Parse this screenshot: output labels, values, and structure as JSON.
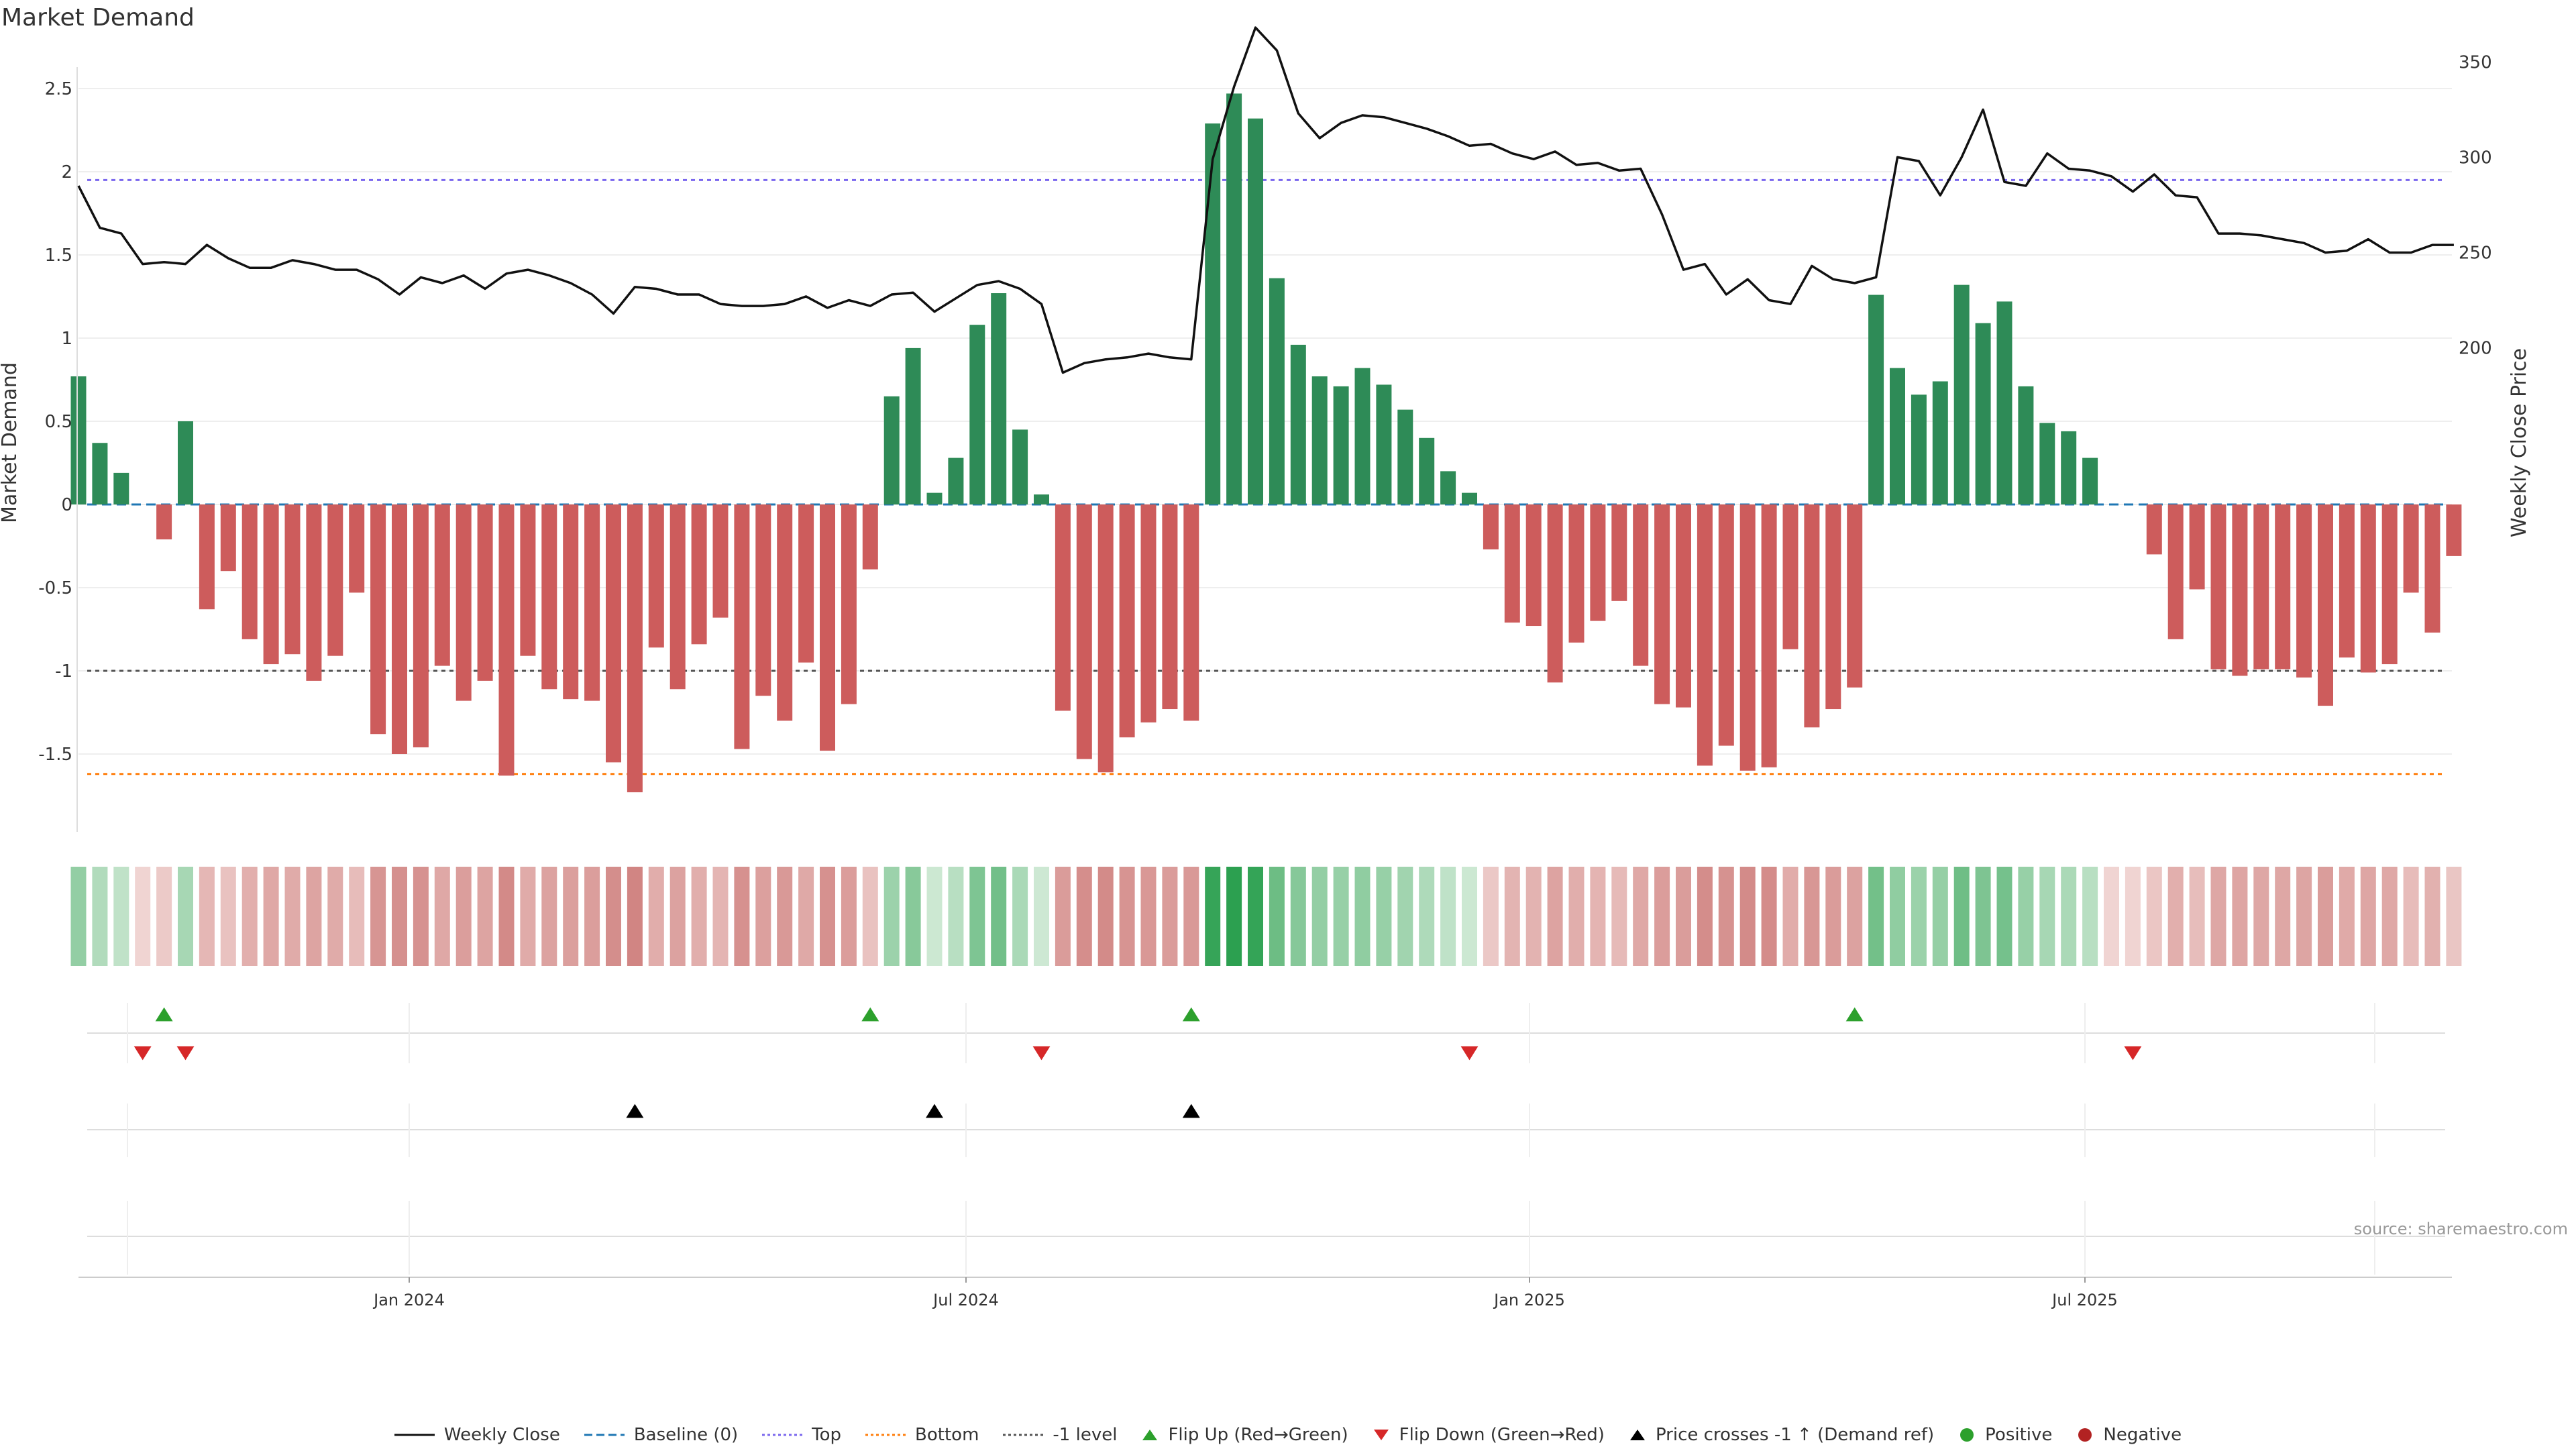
{
  "title": "Market Demand",
  "source": "source: sharemaestro.com",
  "colors": {
    "positive": "#2e8b57",
    "negative": "#cd5c5c",
    "price": "#111111",
    "baseline": "#1f77b4",
    "top": "#7b68ee",
    "bottom": "#ff7f0e",
    "minus1": "#555555",
    "flip_up": "#2ca02c",
    "flip_down": "#d62728",
    "cross": "#000000"
  },
  "chart_data": {
    "type": "bar",
    "ylabel": "Market Demand",
    "y2label": "Weekly Close Price",
    "ylim": [
      -1.98,
      2.58
    ],
    "y2lim": [
      181.5,
      368.5
    ],
    "yticks": [
      "2.5",
      "2",
      "1.5",
      "1",
      "0.5",
      "0",
      "-0.5",
      "-1",
      "-1.5"
    ],
    "y2ticks": [
      "350",
      "300",
      "250",
      "200"
    ],
    "xticks": [
      "Jan 2024",
      "Jul 2024",
      "Jan 2025",
      "Jul 2025"
    ],
    "levels": {
      "top": 1.95,
      "bottom": -1.62,
      "minus1": -1.0,
      "baseline": 0
    },
    "weeks": 112,
    "demand": [
      0.77,
      0.37,
      0.19,
      0,
      -0.21,
      0.5,
      -0.63,
      -0.4,
      -0.81,
      -0.96,
      -0.9,
      -1.06,
      -0.91,
      -0.53,
      -1.38,
      -1.5,
      -1.46,
      -0.97,
      -1.18,
      -1.06,
      -1.63,
      -0.91,
      -1.11,
      -1.17,
      -1.18,
      -1.55,
      -1.73,
      -0.86,
      -1.11,
      -0.84,
      -0.68,
      -1.47,
      -1.15,
      -1.3,
      -0.95,
      -1.48,
      -1.2,
      -0.39,
      0.65,
      0.94,
      0.07,
      0.28,
      1.08,
      1.27,
      0.45,
      0.06,
      -1.24,
      -1.53,
      -1.61,
      -1.4,
      -1.31,
      -1.23,
      -1.3,
      2.29,
      2.47,
      2.32,
      1.36,
      0.96,
      0.77,
      0.71,
      0.82,
      0.72,
      0.57,
      0.4,
      0.2,
      0.07,
      -0.27,
      -0.71,
      -0.73,
      -1.07,
      -0.83,
      -0.7,
      -0.58,
      -0.97,
      -1.2,
      -1.22,
      -1.57,
      -1.45,
      -1.6,
      -1.58,
      -0.87,
      -1.34,
      -1.23,
      -1.1,
      1.26,
      0.82,
      0.66,
      0.74,
      1.32,
      1.09,
      1.22,
      0.71,
      0.49,
      0.44,
      0.28,
      0,
      0,
      -0.3,
      -0.81,
      -0.51,
      -0.99,
      -1.03,
      -0.99,
      -0.99,
      -1.04,
      -1.21,
      -0.92,
      -1.01,
      -0.96,
      -0.53,
      -0.77,
      -0.31
    ],
    "close": [
      285,
      263,
      260,
      244,
      245,
      244,
      254,
      247,
      242,
      242,
      246,
      244,
      241,
      241,
      236,
      228,
      237,
      234,
      238,
      231,
      239,
      241,
      238,
      234,
      228,
      218,
      232,
      231,
      228,
      228,
      223,
      222,
      222,
      223,
      227,
      221,
      225,
      222,
      228,
      229,
      219,
      226,
      233,
      235,
      231,
      223,
      187,
      192,
      194,
      195,
      197,
      195,
      194,
      299,
      337,
      368,
      356,
      323,
      310,
      318,
      322,
      321,
      318,
      315,
      311,
      306,
      307,
      302,
      299,
      303,
      296,
      297,
      293,
      294,
      270,
      241,
      244,
      228,
      236,
      225,
      223,
      243,
      236,
      234,
      237,
      300,
      298,
      280,
      300,
      325,
      287,
      285,
      302,
      294,
      293,
      290,
      282,
      291,
      280,
      279,
      260,
      260,
      259,
      257,
      255,
      250,
      251,
      257,
      250,
      250,
      254,
      254
    ]
  },
  "flip_up_weeks": [
    4,
    37,
    52,
    83
  ],
  "flip_down_weeks": [
    3,
    5,
    45,
    65,
    96
  ],
  "price_cross_weeks": [
    26,
    40,
    52
  ],
  "legend": [
    {
      "label": "Weekly Close",
      "kind": "line",
      "color": "#111111",
      "dash": ""
    },
    {
      "label": "Baseline (0)",
      "kind": "line",
      "color": "#1f77b4",
      "dash": "12,6"
    },
    {
      "label": "Top",
      "kind": "line",
      "color": "#7b68ee",
      "dash": "4,4"
    },
    {
      "label": "Bottom",
      "kind": "line",
      "color": "#ff7f0e",
      "dash": "4,4"
    },
    {
      "label": "-1 level",
      "kind": "line",
      "color": "#555555",
      "dash": "4,4"
    },
    {
      "label": "Flip Up (Red→Green)",
      "kind": "tri-up",
      "color": "#2ca02c"
    },
    {
      "label": "Flip Down (Green→Red)",
      "kind": "tri-down",
      "color": "#d62728"
    },
    {
      "label": "Price crosses -1 ↑ (Demand ref)",
      "kind": "tri-up",
      "color": "#000000"
    },
    {
      "label": "Positive",
      "kind": "dot",
      "color": "#2ca02c"
    },
    {
      "label": "Negative",
      "kind": "dot",
      "color": "#b22222"
    }
  ]
}
